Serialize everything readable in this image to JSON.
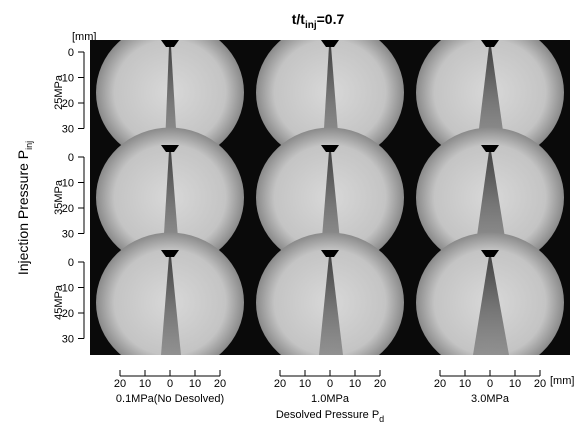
{
  "title": {
    "text": "t/t",
    "subscript": "inj",
    "suffix": "=0.7"
  },
  "y_unit": "[mm]",
  "x_unit": "[mm]",
  "y_ticks": [
    0,
    10,
    20,
    30
  ],
  "x_ticks": [
    20,
    10,
    0,
    10,
    20
  ],
  "rows": [
    {
      "label": "25MPa"
    },
    {
      "label": "35MPa"
    },
    {
      "label": "45MPa"
    }
  ],
  "columns": [
    {
      "label": "0.1MPa(No Desolved)"
    },
    {
      "label": "1.0MPa"
    },
    {
      "label": "3.0MPa"
    }
  ],
  "y_axis_label": {
    "text": "Injection Pressure P",
    "subscript": "inj"
  },
  "x_axis_label": {
    "text": "Desolved Pressure P",
    "subscript": "d"
  }
}
